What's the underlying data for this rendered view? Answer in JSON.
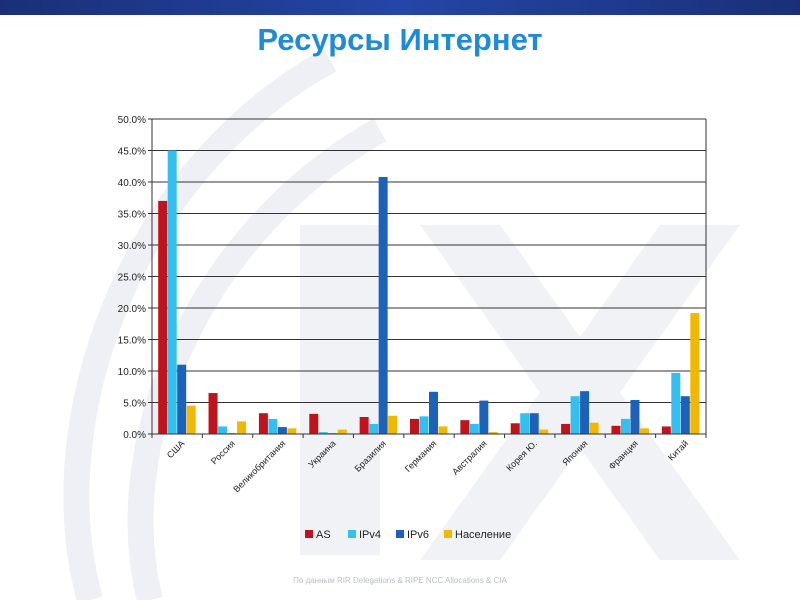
{
  "slide": {
    "title": "Ресурсы Интернет",
    "footer": "По данным RIR Delegations & RIPE NCC Allocations & CIA"
  },
  "colors": {
    "title": "#1f8ad6",
    "topbar": "#1f3a8f",
    "series": [
      "#c0141c",
      "#33c0f0",
      "#1c62b8",
      "#f2b800"
    ]
  },
  "chart_data": {
    "type": "bar",
    "title": "",
    "xlabel": "",
    "ylabel": "",
    "categories": [
      "США",
      "Россия",
      "Великобритания",
      "Украина",
      "Бразилия",
      "Германия",
      "Австралия",
      "Корея Ю.",
      "Япония",
      "Франция",
      "Китай"
    ],
    "yticks": [
      "0.0%",
      "5.0%",
      "10.0%",
      "15.0%",
      "20.0%",
      "25.0%",
      "30.0%",
      "35.0%",
      "40.0%",
      "45.0%",
      "50.0%"
    ],
    "ylim": [
      0,
      50
    ],
    "grid": true,
    "legend_position": "bottom",
    "series": [
      {
        "name": "AS",
        "color": "#c0141c",
        "values": [
          37.0,
          6.5,
          3.3,
          3.2,
          2.7,
          2.4,
          2.2,
          1.7,
          1.6,
          1.3,
          1.2
        ]
      },
      {
        "name": "IPv4",
        "color": "#33c0f0",
        "values": [
          45.0,
          1.2,
          2.4,
          0.3,
          1.6,
          2.8,
          1.6,
          3.3,
          6.0,
          2.4,
          9.7
        ]
      },
      {
        "name": "IPv6",
        "color": "#1c62b8",
        "values": [
          11.0,
          0.1,
          1.1,
          0.1,
          40.8,
          6.7,
          5.3,
          3.3,
          6.8,
          5.4,
          6.0
        ]
      },
      {
        "name": "Население",
        "color": "#f2b800",
        "values": [
          4.5,
          2.0,
          0.9,
          0.7,
          2.9,
          1.2,
          0.3,
          0.7,
          1.8,
          0.9,
          19.2
        ]
      }
    ]
  }
}
